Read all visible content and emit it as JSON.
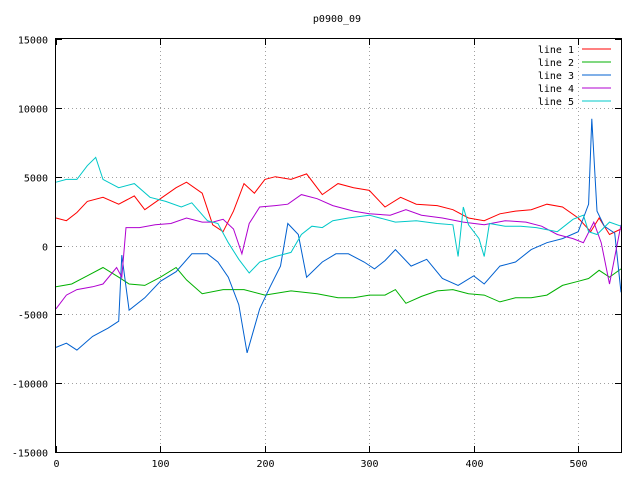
{
  "chart_data": {
    "type": "line",
    "title": "p0900_09",
    "xlabel": "",
    "ylabel": "",
    "xlim": [
      0,
      541
    ],
    "ylim": [
      -15000,
      15000
    ],
    "x_ticks": [
      0,
      100,
      200,
      300,
      400,
      500
    ],
    "y_ticks": [
      -15000,
      -10000,
      -5000,
      0,
      5000,
      10000,
      15000
    ],
    "grid": true,
    "legend_position": "top-right",
    "series": [
      {
        "name": "line 1",
        "color": "#ff0000",
        "points": [
          [
            0,
            2000
          ],
          [
            10,
            1800
          ],
          [
            20,
            2400
          ],
          [
            30,
            3200
          ],
          [
            45,
            3500
          ],
          [
            60,
            3000
          ],
          [
            75,
            3600
          ],
          [
            85,
            2600
          ],
          [
            100,
            3400
          ],
          [
            115,
            4200
          ],
          [
            125,
            4600
          ],
          [
            140,
            3800
          ],
          [
            150,
            1500
          ],
          [
            160,
            1000
          ],
          [
            170,
            2500
          ],
          [
            180,
            4500
          ],
          [
            190,
            3800
          ],
          [
            200,
            4800
          ],
          [
            210,
            5000
          ],
          [
            225,
            4800
          ],
          [
            240,
            5200
          ],
          [
            255,
            3700
          ],
          [
            270,
            4500
          ],
          [
            285,
            4200
          ],
          [
            300,
            4000
          ],
          [
            315,
            2800
          ],
          [
            330,
            3500
          ],
          [
            345,
            3000
          ],
          [
            365,
            2900
          ],
          [
            380,
            2600
          ],
          [
            395,
            2000
          ],
          [
            410,
            1800
          ],
          [
            425,
            2300
          ],
          [
            440,
            2500
          ],
          [
            455,
            2600
          ],
          [
            470,
            3000
          ],
          [
            485,
            2800
          ],
          [
            500,
            2000
          ],
          [
            512,
            1000
          ],
          [
            520,
            2000
          ],
          [
            530,
            800
          ],
          [
            541,
            1200
          ]
        ]
      },
      {
        "name": "line 2",
        "color": "#00b000",
        "points": [
          [
            0,
            -3000
          ],
          [
            15,
            -2800
          ],
          [
            30,
            -2200
          ],
          [
            45,
            -1600
          ],
          [
            60,
            -2300
          ],
          [
            70,
            -2800
          ],
          [
            85,
            -2900
          ],
          [
            100,
            -2300
          ],
          [
            115,
            -1600
          ],
          [
            125,
            -2500
          ],
          [
            140,
            -3500
          ],
          [
            160,
            -3200
          ],
          [
            180,
            -3200
          ],
          [
            200,
            -3600
          ],
          [
            225,
            -3300
          ],
          [
            250,
            -3500
          ],
          [
            270,
            -3800
          ],
          [
            285,
            -3800
          ],
          [
            300,
            -3600
          ],
          [
            315,
            -3600
          ],
          [
            325,
            -3200
          ],
          [
            335,
            -4200
          ],
          [
            350,
            -3700
          ],
          [
            365,
            -3300
          ],
          [
            380,
            -3200
          ],
          [
            395,
            -3500
          ],
          [
            410,
            -3600
          ],
          [
            425,
            -4100
          ],
          [
            440,
            -3800
          ],
          [
            455,
            -3800
          ],
          [
            470,
            -3600
          ],
          [
            485,
            -2900
          ],
          [
            500,
            -2600
          ],
          [
            510,
            -2400
          ],
          [
            520,
            -1800
          ],
          [
            530,
            -2300
          ],
          [
            541,
            -1700
          ]
        ]
      },
      {
        "name": "line 3",
        "color": "#0060d0",
        "points": [
          [
            0,
            -7400
          ],
          [
            10,
            -7100
          ],
          [
            20,
            -7600
          ],
          [
            35,
            -6600
          ],
          [
            50,
            -6000
          ],
          [
            60,
            -5500
          ],
          [
            63,
            -700
          ],
          [
            70,
            -4700
          ],
          [
            85,
            -3800
          ],
          [
            100,
            -2600
          ],
          [
            115,
            -1900
          ],
          [
            130,
            -600
          ],
          [
            145,
            -600
          ],
          [
            155,
            -1200
          ],
          [
            165,
            -2300
          ],
          [
            175,
            -4300
          ],
          [
            183,
            -7800
          ],
          [
            195,
            -4600
          ],
          [
            205,
            -3000
          ],
          [
            215,
            -1500
          ],
          [
            222,
            1600
          ],
          [
            232,
            800
          ],
          [
            240,
            -2300
          ],
          [
            255,
            -1200
          ],
          [
            268,
            -600
          ],
          [
            280,
            -600
          ],
          [
            295,
            -1200
          ],
          [
            305,
            -1700
          ],
          [
            315,
            -1100
          ],
          [
            325,
            -300
          ],
          [
            340,
            -1500
          ],
          [
            355,
            -1000
          ],
          [
            370,
            -2400
          ],
          [
            385,
            -2900
          ],
          [
            400,
            -2200
          ],
          [
            410,
            -2800
          ],
          [
            425,
            -1500
          ],
          [
            440,
            -1200
          ],
          [
            455,
            -300
          ],
          [
            470,
            200
          ],
          [
            485,
            500
          ],
          [
            500,
            1000
          ],
          [
            505,
            2000
          ],
          [
            510,
            3000
          ],
          [
            513,
            9200
          ],
          [
            518,
            2500
          ],
          [
            525,
            1400
          ],
          [
            535,
            900
          ],
          [
            541,
            -3400
          ]
        ]
      },
      {
        "name": "line 4",
        "color": "#b000d0",
        "points": [
          [
            0,
            -4600
          ],
          [
            10,
            -3600
          ],
          [
            20,
            -3200
          ],
          [
            35,
            -3000
          ],
          [
            45,
            -2800
          ],
          [
            58,
            -1600
          ],
          [
            63,
            -2300
          ],
          [
            67,
            1300
          ],
          [
            80,
            1300
          ],
          [
            95,
            1500
          ],
          [
            110,
            1600
          ],
          [
            125,
            2000
          ],
          [
            140,
            1700
          ],
          [
            150,
            1700
          ],
          [
            160,
            1900
          ],
          [
            170,
            1200
          ],
          [
            178,
            -600
          ],
          [
            185,
            1600
          ],
          [
            195,
            2800
          ],
          [
            210,
            2900
          ],
          [
            222,
            3000
          ],
          [
            235,
            3700
          ],
          [
            250,
            3400
          ],
          [
            265,
            2900
          ],
          [
            285,
            2500
          ],
          [
            300,
            2300
          ],
          [
            320,
            2200
          ],
          [
            335,
            2600
          ],
          [
            350,
            2200
          ],
          [
            370,
            2000
          ],
          [
            390,
            1700
          ],
          [
            410,
            1500
          ],
          [
            430,
            1800
          ],
          [
            450,
            1700
          ],
          [
            465,
            1400
          ],
          [
            480,
            800
          ],
          [
            495,
            500
          ],
          [
            505,
            200
          ],
          [
            515,
            1700
          ],
          [
            522,
            200
          ],
          [
            530,
            -2800
          ],
          [
            541,
            1500
          ]
        ]
      },
      {
        "name": "line 5",
        "color": "#00c8c8",
        "points": [
          [
            0,
            4600
          ],
          [
            10,
            4800
          ],
          [
            20,
            4800
          ],
          [
            30,
            5800
          ],
          [
            38,
            6400
          ],
          [
            45,
            4800
          ],
          [
            60,
            4200
          ],
          [
            75,
            4500
          ],
          [
            90,
            3500
          ],
          [
            105,
            3200
          ],
          [
            120,
            2800
          ],
          [
            130,
            3100
          ],
          [
            145,
            1800
          ],
          [
            155,
            1600
          ],
          [
            165,
            200
          ],
          [
            175,
            -1000
          ],
          [
            185,
            -2000
          ],
          [
            195,
            -1200
          ],
          [
            210,
            -800
          ],
          [
            225,
            -500
          ],
          [
            235,
            800
          ],
          [
            245,
            1400
          ],
          [
            255,
            1300
          ],
          [
            265,
            1800
          ],
          [
            280,
            2000
          ],
          [
            300,
            2200
          ],
          [
            325,
            1700
          ],
          [
            345,
            1800
          ],
          [
            365,
            1600
          ],
          [
            380,
            1500
          ],
          [
            385,
            -800
          ],
          [
            390,
            2800
          ],
          [
            395,
            1500
          ],
          [
            405,
            500
          ],
          [
            410,
            -800
          ],
          [
            415,
            1600
          ],
          [
            430,
            1400
          ],
          [
            445,
            1400
          ],
          [
            460,
            1300
          ],
          [
            480,
            1000
          ],
          [
            495,
            1900
          ],
          [
            505,
            2200
          ],
          [
            510,
            1000
          ],
          [
            518,
            800
          ],
          [
            530,
            1700
          ],
          [
            541,
            1400
          ]
        ]
      }
    ]
  }
}
